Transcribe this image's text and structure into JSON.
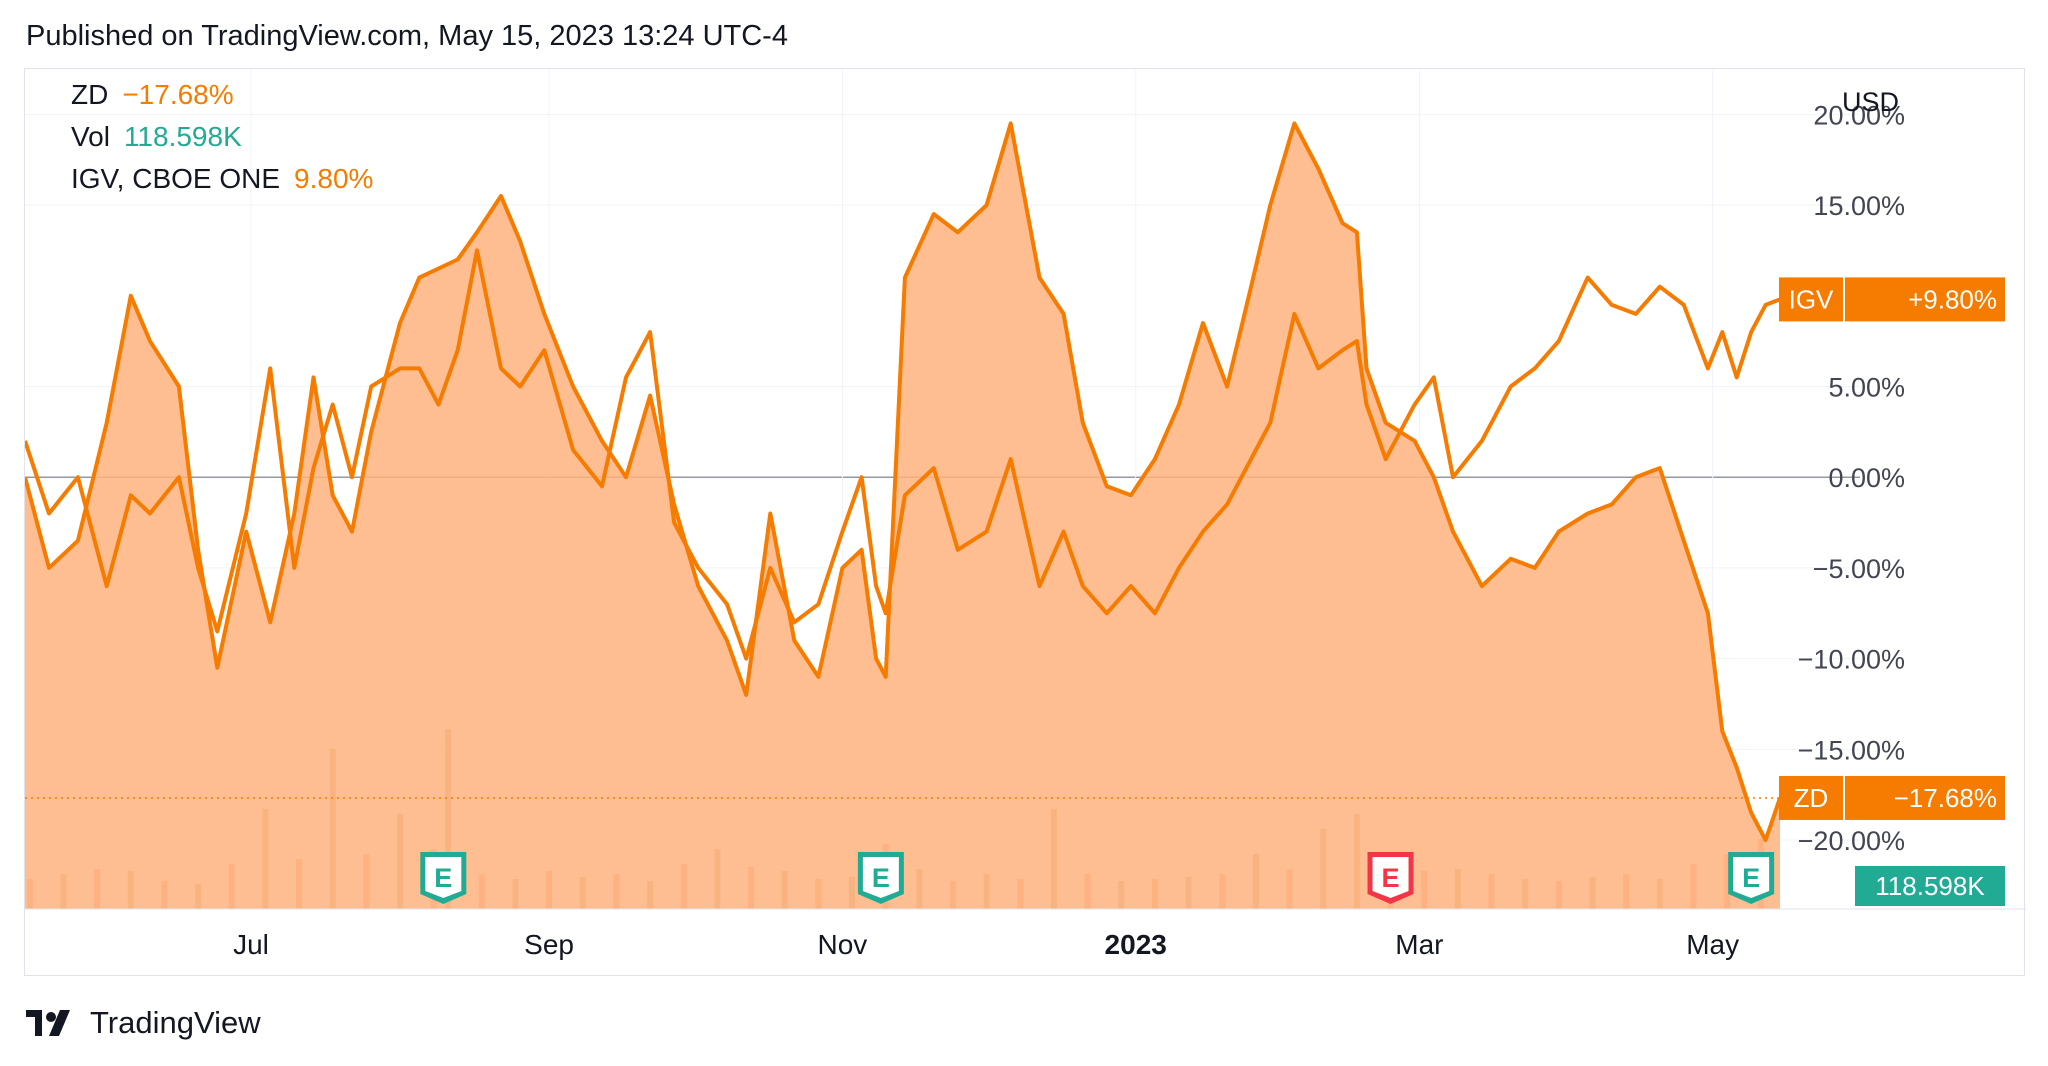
{
  "published": "Published on TradingView.com, May 15, 2023 13:24 UTC-4",
  "brand": "TradingView",
  "legend": {
    "zd": {
      "symbol": "ZD",
      "value": "−17.68%"
    },
    "vol": {
      "symbol": "Vol",
      "value": "118.598K"
    },
    "igv": {
      "symbol": "IGV, CBOE ONE",
      "value": "9.80%"
    }
  },
  "colors": {
    "zd": "#f57c00",
    "zd_fill": "#ffb37e",
    "igv": "#f57c00",
    "vol_up": "#c8a36e",
    "vol_down": "#f4937c",
    "vol_badge": "#22ab94",
    "earnings_green": "#22ab94",
    "earnings_red": "#f23645",
    "text": "#131722",
    "axis_text": "#434651",
    "grid": "#f0f3fa"
  },
  "chart_data": {
    "type": "line",
    "currency": "USD",
    "y_unit": "%",
    "ylim": [
      -23.8,
      22.5
    ],
    "y_ticks": [
      20,
      15,
      5,
      0,
      -5,
      -10,
      -15,
      -20
    ],
    "y_tick_labels": [
      "20.00%",
      "15.00%",
      "5.00%",
      "0.00%",
      "−5.00%",
      "−10.00%",
      "−15.00%",
      "−20.00%"
    ],
    "x_range": [
      "2022-05-15",
      "2023-05-15"
    ],
    "x_ticks": [
      {
        "date": "2022-07-01",
        "label": "Jul",
        "bold": false
      },
      {
        "date": "2022-09-01",
        "label": "Sep",
        "bold": false
      },
      {
        "date": "2022-11-01",
        "label": "Nov",
        "bold": false
      },
      {
        "date": "2023-01-01",
        "label": "2023",
        "bold": true
      },
      {
        "date": "2023-03-01",
        "label": "Mar",
        "bold": false
      },
      {
        "date": "2023-05-01",
        "label": "May",
        "bold": false
      }
    ],
    "grid": true,
    "series": [
      {
        "name": "ZD",
        "style": "area",
        "last_value": -17.68,
        "label": "ZD",
        "label_value": "−17.68%",
        "points": [
          [
            "2022-05-15",
            0
          ],
          [
            "2022-05-20",
            -5
          ],
          [
            "2022-05-26",
            -3.5
          ],
          [
            "2022-06-01",
            3
          ],
          [
            "2022-06-06",
            10
          ],
          [
            "2022-06-10",
            7.5
          ],
          [
            "2022-06-16",
            5
          ],
          [
            "2022-06-20",
            -4
          ],
          [
            "2022-06-24",
            -10.5
          ],
          [
            "2022-06-30",
            -3
          ],
          [
            "2022-07-05",
            -8
          ],
          [
            "2022-07-10",
            -2
          ],
          [
            "2022-07-14",
            5.5
          ],
          [
            "2022-07-18",
            -1
          ],
          [
            "2022-07-22",
            -3
          ],
          [
            "2022-07-26",
            2.5
          ],
          [
            "2022-08-01",
            8.5
          ],
          [
            "2022-08-05",
            11
          ],
          [
            "2022-08-09",
            11.5
          ],
          [
            "2022-08-13",
            12
          ],
          [
            "2022-08-17",
            13.5
          ],
          [
            "2022-08-22",
            15.5
          ],
          [
            "2022-08-26",
            13
          ],
          [
            "2022-08-31",
            9
          ],
          [
            "2022-09-06",
            5
          ],
          [
            "2022-09-12",
            2
          ],
          [
            "2022-09-17",
            0
          ],
          [
            "2022-09-22",
            4.5
          ],
          [
            "2022-09-27",
            -1.5
          ],
          [
            "2022-10-02",
            -6
          ],
          [
            "2022-10-08",
            -9
          ],
          [
            "2022-10-12",
            -12
          ],
          [
            "2022-10-17",
            -2
          ],
          [
            "2022-10-22",
            -9
          ],
          [
            "2022-10-27",
            -11
          ],
          [
            "2022-11-01",
            -5
          ],
          [
            "2022-11-05",
            -4
          ],
          [
            "2022-11-08",
            -10
          ],
          [
            "2022-11-10",
            -11
          ],
          [
            "2022-11-14",
            11
          ],
          [
            "2022-11-20",
            14.5
          ],
          [
            "2022-11-25",
            13.5
          ],
          [
            "2022-12-01",
            15
          ],
          [
            "2022-12-06",
            19.5
          ],
          [
            "2022-12-12",
            11
          ],
          [
            "2022-12-17",
            9
          ],
          [
            "2022-12-21",
            3
          ],
          [
            "2022-12-26",
            -0.5
          ],
          [
            "2022-12-31",
            -1
          ],
          [
            "2023-01-05",
            1
          ],
          [
            "2023-01-10",
            4
          ],
          [
            "2023-01-15",
            8.5
          ],
          [
            "2023-01-20",
            5
          ],
          [
            "2023-01-25",
            10.5
          ],
          [
            "2023-01-29",
            15
          ],
          [
            "2023-02-03",
            19.5
          ],
          [
            "2023-02-08",
            17
          ],
          [
            "2023-02-13",
            14
          ],
          [
            "2023-02-16",
            13.5
          ],
          [
            "2023-02-18",
            6
          ],
          [
            "2023-02-22",
            3
          ],
          [
            "2023-02-28",
            2
          ],
          [
            "2023-03-04",
            0
          ],
          [
            "2023-03-08",
            -3
          ],
          [
            "2023-03-14",
            -6
          ],
          [
            "2023-03-20",
            -4.5
          ],
          [
            "2023-03-25",
            -5
          ],
          [
            "2023-03-30",
            -3
          ],
          [
            "2023-04-05",
            -2
          ],
          [
            "2023-04-10",
            -1.5
          ],
          [
            "2023-04-15",
            0
          ],
          [
            "2023-04-20",
            0.5
          ],
          [
            "2023-04-25",
            -3.5
          ],
          [
            "2023-04-30",
            -7.5
          ],
          [
            "2023-05-03",
            -14
          ],
          [
            "2023-05-06",
            -16
          ],
          [
            "2023-05-09",
            -18.5
          ],
          [
            "2023-05-12",
            -20
          ],
          [
            "2023-05-15",
            -17.68
          ]
        ]
      },
      {
        "name": "IGV",
        "style": "line",
        "last_value": 9.8,
        "label": "IGV",
        "label_value": "+9.80%",
        "points": [
          [
            "2022-05-15",
            2
          ],
          [
            "2022-05-20",
            -2
          ],
          [
            "2022-05-26",
            0
          ],
          [
            "2022-06-01",
            -6
          ],
          [
            "2022-06-06",
            -1
          ],
          [
            "2022-06-10",
            -2
          ],
          [
            "2022-06-16",
            0
          ],
          [
            "2022-06-20",
            -5
          ],
          [
            "2022-06-24",
            -8.5
          ],
          [
            "2022-06-30",
            -2
          ],
          [
            "2022-07-05",
            6
          ],
          [
            "2022-07-10",
            -5
          ],
          [
            "2022-07-14",
            0.5
          ],
          [
            "2022-07-18",
            4
          ],
          [
            "2022-07-22",
            0
          ],
          [
            "2022-07-26",
            5
          ],
          [
            "2022-08-01",
            6
          ],
          [
            "2022-08-05",
            6
          ],
          [
            "2022-08-09",
            4
          ],
          [
            "2022-08-13",
            7
          ],
          [
            "2022-08-17",
            12.5
          ],
          [
            "2022-08-22",
            6
          ],
          [
            "2022-08-26",
            5
          ],
          [
            "2022-08-31",
            7
          ],
          [
            "2022-09-06",
            1.5
          ],
          [
            "2022-09-12",
            -0.5
          ],
          [
            "2022-09-17",
            5.5
          ],
          [
            "2022-09-22",
            8
          ],
          [
            "2022-09-27",
            -2.5
          ],
          [
            "2022-10-02",
            -5
          ],
          [
            "2022-10-08",
            -7
          ],
          [
            "2022-10-12",
            -10
          ],
          [
            "2022-10-17",
            -5
          ],
          [
            "2022-10-22",
            -8
          ],
          [
            "2022-10-27",
            -7
          ],
          [
            "2022-11-01",
            -3
          ],
          [
            "2022-11-05",
            0
          ],
          [
            "2022-11-08",
            -6
          ],
          [
            "2022-11-10",
            -7.5
          ],
          [
            "2022-11-14",
            -1
          ],
          [
            "2022-11-20",
            0.5
          ],
          [
            "2022-11-25",
            -4
          ],
          [
            "2022-12-01",
            -3
          ],
          [
            "2022-12-06",
            1
          ],
          [
            "2022-12-12",
            -6
          ],
          [
            "2022-12-17",
            -3
          ],
          [
            "2022-12-21",
            -6
          ],
          [
            "2022-12-26",
            -7.5
          ],
          [
            "2022-12-31",
            -6
          ],
          [
            "2023-01-05",
            -7.5
          ],
          [
            "2023-01-10",
            -5
          ],
          [
            "2023-01-15",
            -3
          ],
          [
            "2023-01-20",
            -1.5
          ],
          [
            "2023-01-25",
            1
          ],
          [
            "2023-01-29",
            3
          ],
          [
            "2023-02-03",
            9
          ],
          [
            "2023-02-08",
            6
          ],
          [
            "2023-02-13",
            7
          ],
          [
            "2023-02-16",
            7.5
          ],
          [
            "2023-02-18",
            4
          ],
          [
            "2023-02-22",
            1
          ],
          [
            "2023-02-28",
            4
          ],
          [
            "2023-03-04",
            5.5
          ],
          [
            "2023-03-08",
            0
          ],
          [
            "2023-03-14",
            2
          ],
          [
            "2023-03-20",
            5
          ],
          [
            "2023-03-25",
            6
          ],
          [
            "2023-03-30",
            7.5
          ],
          [
            "2023-04-05",
            11
          ],
          [
            "2023-04-10",
            9.5
          ],
          [
            "2023-04-15",
            9
          ],
          [
            "2023-04-20",
            10.5
          ],
          [
            "2023-04-25",
            9.5
          ],
          [
            "2023-04-30",
            6
          ],
          [
            "2023-05-03",
            8
          ],
          [
            "2023-05-06",
            5.5
          ],
          [
            "2023-05-09",
            8
          ],
          [
            "2023-05-12",
            9.5
          ],
          [
            "2023-05-15",
            9.8
          ]
        ]
      }
    ],
    "volume": {
      "name": "Vol",
      "last_value_label": "118.598K",
      "bars": [
        {
          "date": "2022-05-16",
          "value": 30,
          "up": false
        },
        {
          "date": "2022-05-23",
          "value": 35,
          "up": true
        },
        {
          "date": "2022-05-30",
          "value": 40,
          "up": false
        },
        {
          "date": "2022-06-06",
          "value": 38,
          "up": true
        },
        {
          "date": "2022-06-13",
          "value": 28,
          "up": false
        },
        {
          "date": "2022-06-20",
          "value": 25,
          "up": true
        },
        {
          "date": "2022-06-27",
          "value": 45,
          "up": false
        },
        {
          "date": "2022-07-04",
          "value": 100,
          "up": true
        },
        {
          "date": "2022-07-11",
          "value": 50,
          "up": false
        },
        {
          "date": "2022-07-18",
          "value": 160,
          "up": true
        },
        {
          "date": "2022-07-25",
          "value": 55,
          "up": false
        },
        {
          "date": "2022-08-01",
          "value": 95,
          "up": true
        },
        {
          "date": "2022-08-08",
          "value": 60,
          "up": false
        },
        {
          "date": "2022-08-11",
          "value": 180,
          "up": true
        },
        {
          "date": "2022-08-18",
          "value": 35,
          "up": false
        },
        {
          "date": "2022-08-25",
          "value": 30,
          "up": true
        },
        {
          "date": "2022-09-01",
          "value": 38,
          "up": false
        },
        {
          "date": "2022-09-08",
          "value": 32,
          "up": true
        },
        {
          "date": "2022-09-15",
          "value": 35,
          "up": false
        },
        {
          "date": "2022-09-22",
          "value": 28,
          "up": true
        },
        {
          "date": "2022-09-29",
          "value": 45,
          "up": false
        },
        {
          "date": "2022-10-06",
          "value": 60,
          "up": true
        },
        {
          "date": "2022-10-13",
          "value": 42,
          "up": false
        },
        {
          "date": "2022-10-20",
          "value": 38,
          "up": true
        },
        {
          "date": "2022-10-27",
          "value": 30,
          "up": false
        },
        {
          "date": "2022-11-03",
          "value": 32,
          "up": true
        },
        {
          "date": "2022-11-10",
          "value": 65,
          "up": false
        },
        {
          "date": "2022-11-17",
          "value": 40,
          "up": true
        },
        {
          "date": "2022-11-24",
          "value": 28,
          "up": false
        },
        {
          "date": "2022-12-01",
          "value": 35,
          "up": true
        },
        {
          "date": "2022-12-08",
          "value": 30,
          "up": false
        },
        {
          "date": "2022-12-15",
          "value": 100,
          "up": true
        },
        {
          "date": "2022-12-22",
          "value": 35,
          "up": false
        },
        {
          "date": "2022-12-29",
          "value": 28,
          "up": true
        },
        {
          "date": "2023-01-05",
          "value": 30,
          "up": false
        },
        {
          "date": "2023-01-12",
          "value": 32,
          "up": true
        },
        {
          "date": "2023-01-19",
          "value": 35,
          "up": false
        },
        {
          "date": "2023-01-26",
          "value": 55,
          "up": true
        },
        {
          "date": "2023-02-02",
          "value": 40,
          "up": false
        },
        {
          "date": "2023-02-09",
          "value": 80,
          "up": true
        },
        {
          "date": "2023-02-16",
          "value": 95,
          "up": true
        },
        {
          "date": "2023-02-23",
          "value": 55,
          "up": false
        },
        {
          "date": "2023-03-02",
          "value": 38,
          "up": false
        },
        {
          "date": "2023-03-09",
          "value": 40,
          "up": true
        },
        {
          "date": "2023-03-16",
          "value": 35,
          "up": false
        },
        {
          "date": "2023-03-23",
          "value": 30,
          "up": true
        },
        {
          "date": "2023-03-30",
          "value": 28,
          "up": false
        },
        {
          "date": "2023-04-06",
          "value": 32,
          "up": true
        },
        {
          "date": "2023-04-13",
          "value": 35,
          "up": false
        },
        {
          "date": "2023-04-20",
          "value": 30,
          "up": true
        },
        {
          "date": "2023-04-27",
          "value": 45,
          "up": false
        },
        {
          "date": "2023-05-04",
          "value": 55,
          "up": false
        },
        {
          "date": "2023-05-11",
          "value": 70,
          "up": false
        }
      ]
    },
    "earnings_markers": [
      {
        "date": "2022-08-10",
        "label": "E",
        "color": "green"
      },
      {
        "date": "2022-11-09",
        "label": "E",
        "color": "green"
      },
      {
        "date": "2023-02-23",
        "label": "E",
        "color": "red"
      },
      {
        "date": "2023-05-09",
        "label": "E",
        "color": "green"
      }
    ]
  }
}
